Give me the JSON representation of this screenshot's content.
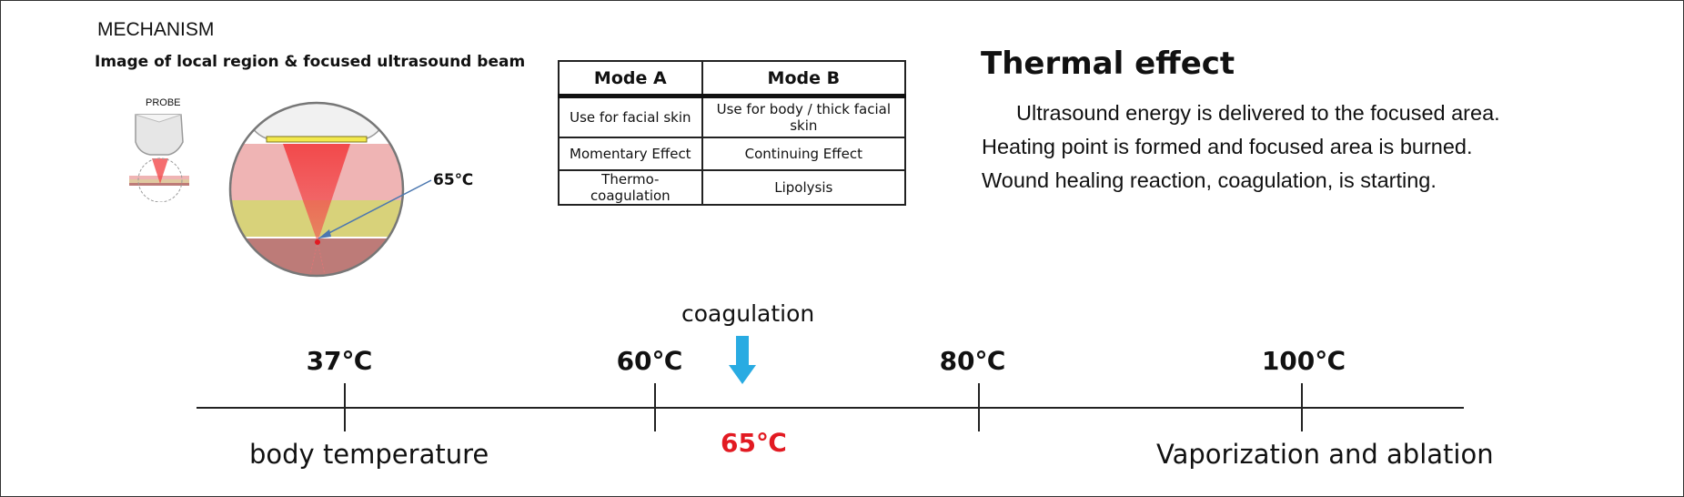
{
  "header": {
    "section_title": "MECHANISM"
  },
  "illustration": {
    "caption": "Image of local region & focused ultrasound beam",
    "probe_label": "PROBE",
    "focus_temperature": "65℃"
  },
  "modes_table": {
    "columns": [
      "Mode A",
      "Mode B"
    ],
    "rows": [
      [
        "Use for facial skin",
        "Use for body / thick facial skin"
      ],
      [
        "Momentary Effect",
        "Continuing Effect"
      ],
      [
        "Thermo-coagulation",
        "Lipolysis"
      ]
    ]
  },
  "thermal": {
    "title": "Thermal effect",
    "lines": [
      "Ultrasound energy is delivered to the focused area.",
      "Heating point is formed and focused area is burned.",
      "Wound healing reaction, coagulation, is starting."
    ]
  },
  "scale": {
    "ticks": [
      "37℃",
      "60℃",
      "80℃",
      "100℃"
    ],
    "coagulation_label": "coagulation",
    "coagulation_temp": "65℃",
    "body_temp_label": "body temperature",
    "vaporization_label": "Vaporization and ablation"
  },
  "colors": {
    "arrow": "#29abe2",
    "coagulation_temp": "#e21a22",
    "beam": "#f2494b",
    "skin_layer": "#efb4b4",
    "fat_layer": "#d8d27a",
    "muscle_layer": "#bd7b78"
  }
}
